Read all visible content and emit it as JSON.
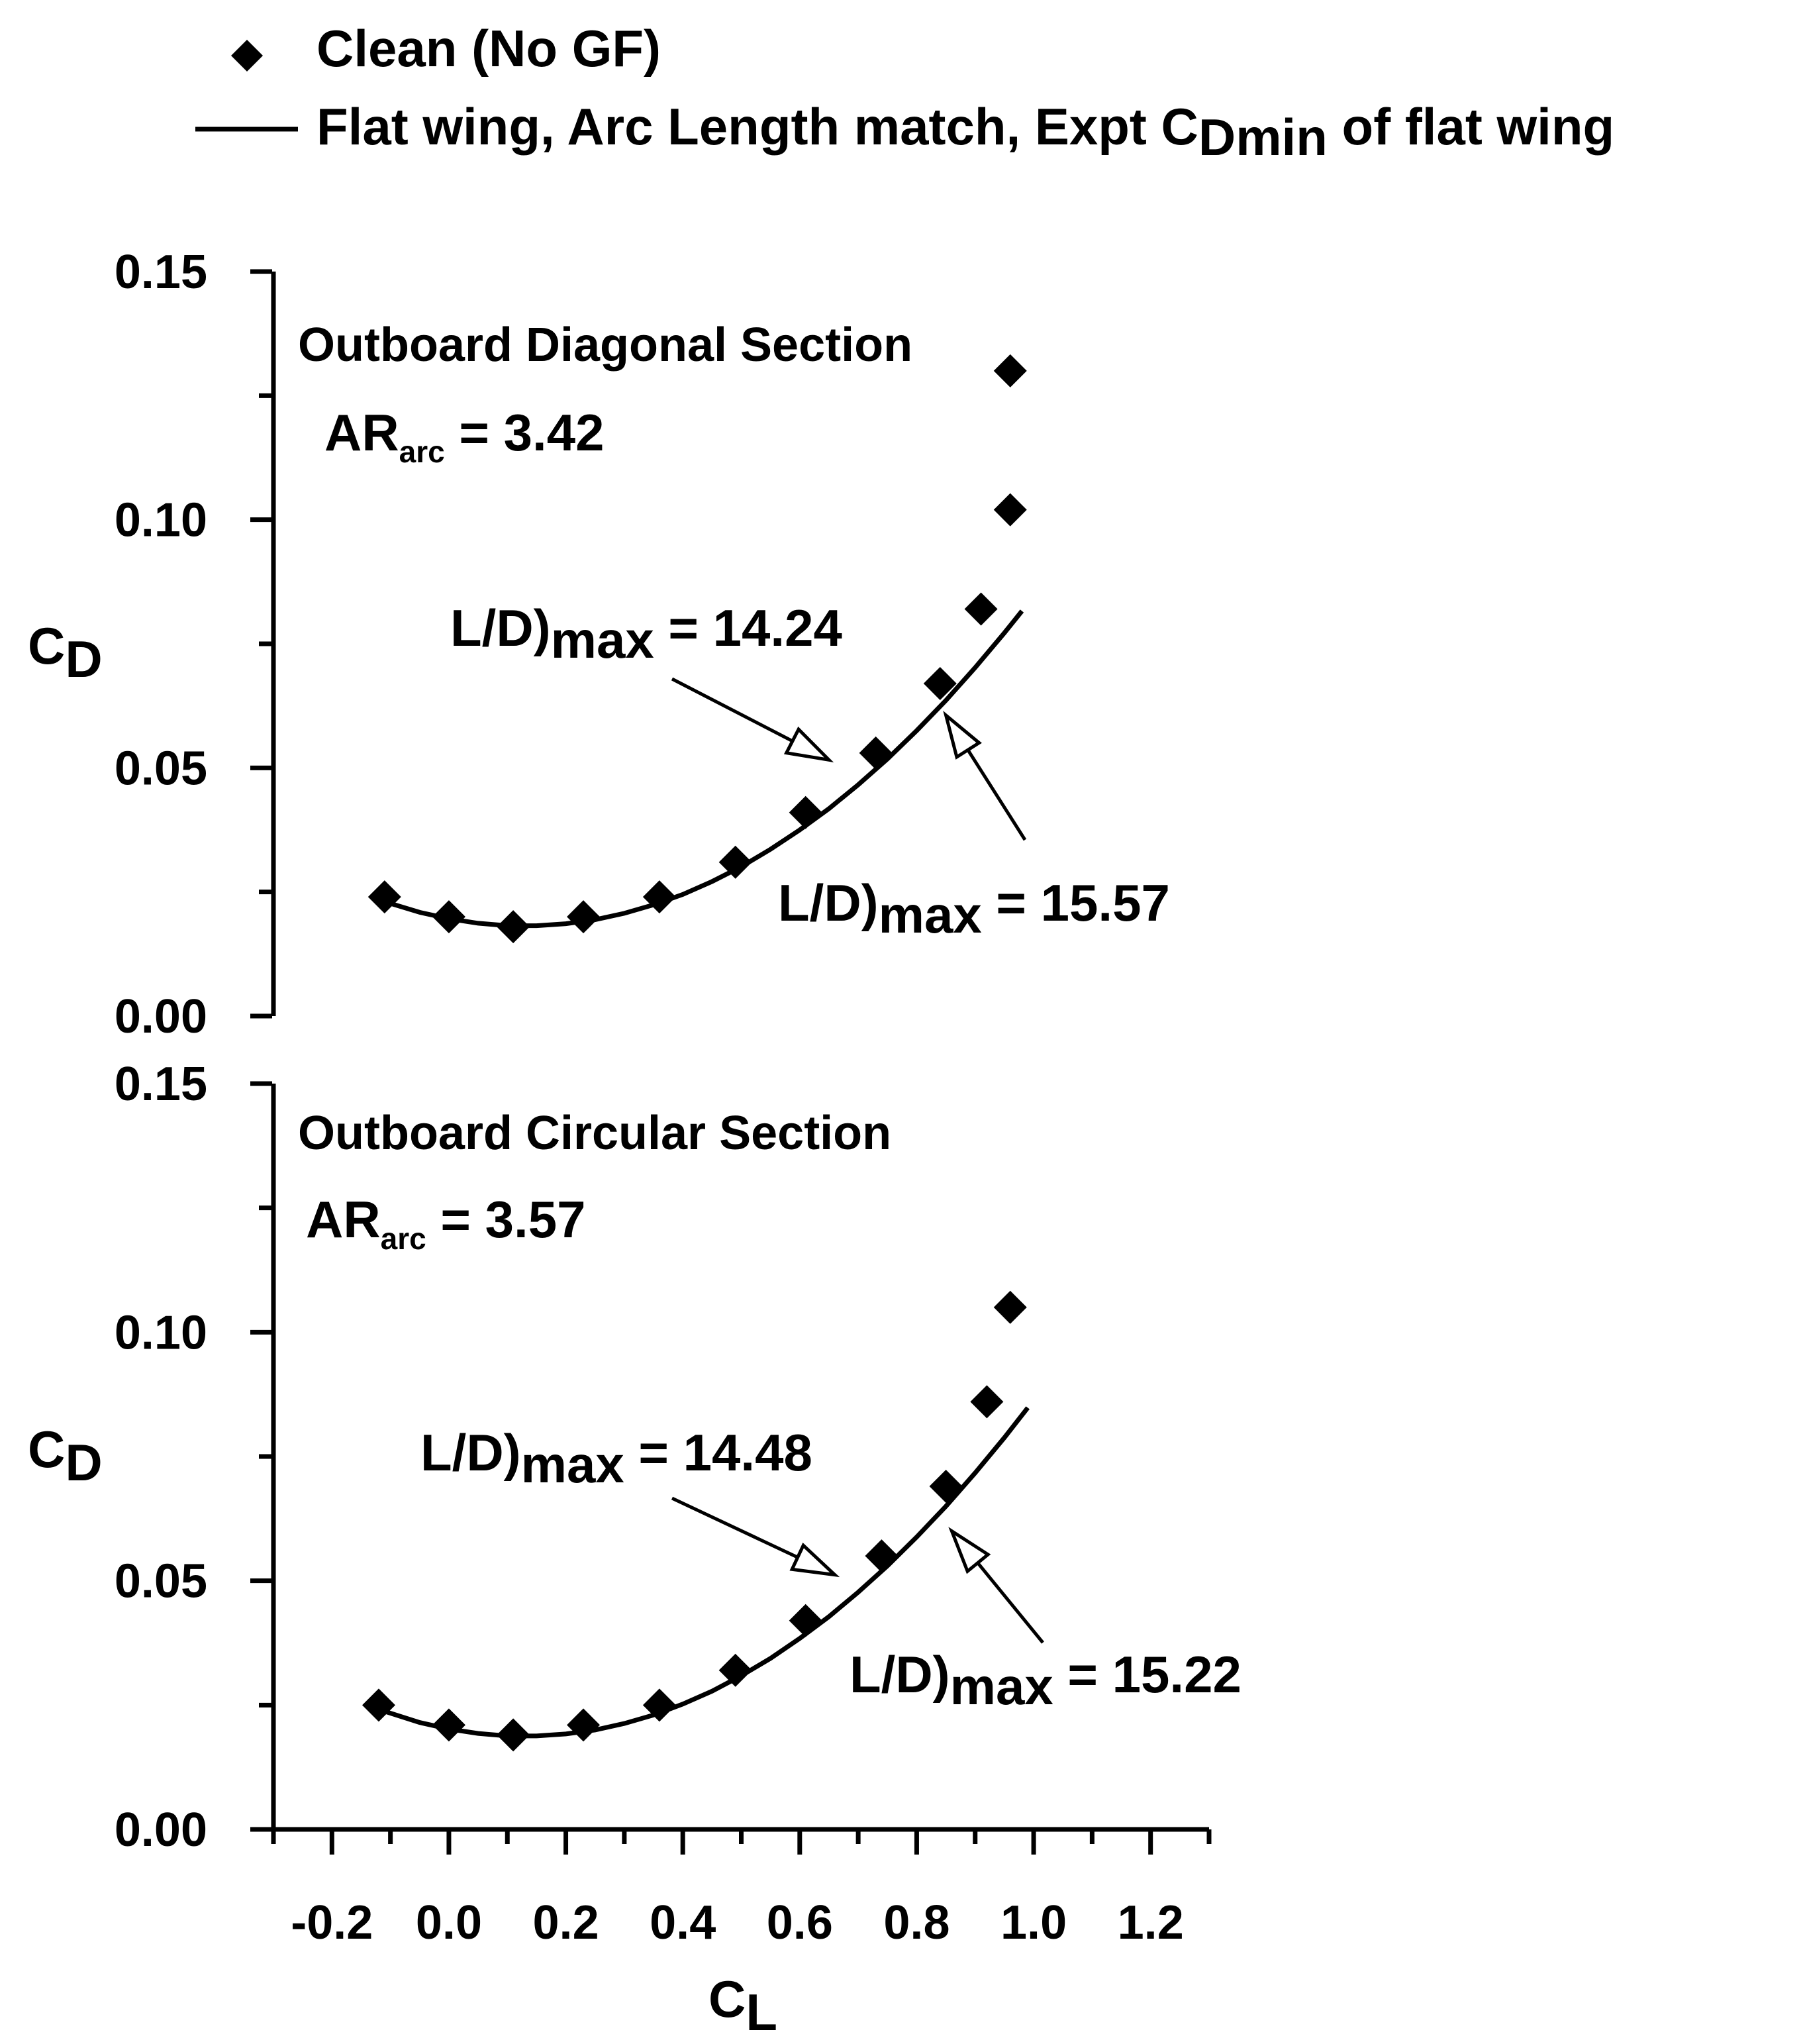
{
  "legend": {
    "items": [
      {
        "symbol": "diamond",
        "label": "Clean (No GF)"
      },
      {
        "symbol": "line",
        "label_main": "Flat wing, Arc Length match, Expt C",
        "label_sub": "Dmin",
        "label_tail": " of flat wing"
      }
    ]
  },
  "chart_data": [
    {
      "type": "scatter",
      "title": "Outboard Diagonal Section",
      "ar_label": {
        "main": "AR",
        "sub": "arc",
        "tail": " = 3.42"
      },
      "xlabel": {
        "main": "C",
        "sub": "L"
      },
      "ylabel": {
        "main": "C",
        "sub": "D"
      },
      "xlim": [
        -0.3,
        1.3
      ],
      "ylim": [
        0.0,
        0.15
      ],
      "xticks": [
        "-0.2",
        "0.0",
        "0.2",
        "0.4",
        "0.6",
        "0.8",
        "1.0",
        "1.2"
      ],
      "yticks": [
        "0.00",
        "0.05",
        "0.10",
        "0.15"
      ],
      "series": [
        {
          "name": "Clean (No GF)",
          "style": "markers",
          "x": [
            -0.11,
            0.0,
            0.11,
            0.23,
            0.36,
            0.49,
            0.61,
            0.73,
            0.84,
            0.91,
            0.96,
            0.96
          ],
          "y": [
            0.024,
            0.02,
            0.018,
            0.02,
            0.024,
            0.031,
            0.041,
            0.053,
            0.067,
            0.082,
            0.102,
            0.13
          ]
        },
        {
          "name": "Flat wing, Arc Length match, Expt CDmin of flat wing",
          "style": "line",
          "x": [
            -0.12,
            -0.05,
            0.0,
            0.05,
            0.1,
            0.15,
            0.2,
            0.25,
            0.3,
            0.35,
            0.4,
            0.45,
            0.5,
            0.55,
            0.6,
            0.65,
            0.7,
            0.75,
            0.8,
            0.85,
            0.9,
            0.95,
            0.98
          ],
          "y": [
            0.0234,
            0.0209,
            0.0196,
            0.0187,
            0.0182,
            0.0182,
            0.0186,
            0.0194,
            0.0207,
            0.0224,
            0.0245,
            0.0271,
            0.0301,
            0.0336,
            0.0375,
            0.0418,
            0.0466,
            0.0518,
            0.0575,
            0.0636,
            0.0702,
            0.0772,
            0.0816
          ]
        }
      ],
      "annotations": [
        {
          "text_main": "L/D)",
          "text_sub": "max",
          "text_tail": " = 14.24",
          "target": [
            0.65,
            0.0516
          ]
        },
        {
          "text_main": "L/D)",
          "text_sub": "max",
          "text_tail": " = 15.57",
          "target": [
            0.85,
            0.0606
          ]
        }
      ]
    },
    {
      "type": "scatter",
      "title": "Outboard Circular Section",
      "ar_label": {
        "main": "AR",
        "sub": "arc",
        "tail": " = 3.57"
      },
      "xlabel": {
        "main": "C",
        "sub": "L"
      },
      "ylabel": {
        "main": "C",
        "sub": "D"
      },
      "xlim": [
        -0.3,
        1.3
      ],
      "ylim": [
        0.0,
        0.15
      ],
      "xticks": [
        "-0.2",
        "0.0",
        "0.2",
        "0.4",
        "0.6",
        "0.8",
        "1.0",
        "1.2"
      ],
      "yticks": [
        "0.00",
        "0.05",
        "0.10",
        "0.15"
      ],
      "series": [
        {
          "name": "Clean (No GF)",
          "style": "markers",
          "x": [
            -0.12,
            0.0,
            0.11,
            0.23,
            0.36,
            0.49,
            0.61,
            0.74,
            0.85,
            0.92,
            0.96
          ],
          "y": [
            0.025,
            0.021,
            0.019,
            0.021,
            0.025,
            0.032,
            0.042,
            0.055,
            0.069,
            0.086,
            0.105
          ]
        },
        {
          "name": "Flat wing, Arc Length match, Expt CDmin of flat wing",
          "style": "line",
          "x": [
            -0.13,
            -0.05,
            0.0,
            0.05,
            0.1,
            0.15,
            0.2,
            0.25,
            0.3,
            0.35,
            0.4,
            0.45,
            0.5,
            0.55,
            0.6,
            0.65,
            0.7,
            0.75,
            0.8,
            0.85,
            0.9,
            0.95,
            0.99
          ],
          "y": [
            0.0245,
            0.0215,
            0.0202,
            0.0193,
            0.0188,
            0.0188,
            0.0192,
            0.02,
            0.0213,
            0.023,
            0.0252,
            0.0278,
            0.0309,
            0.0344,
            0.0384,
            0.0428,
            0.0477,
            0.053,
            0.0588,
            0.065,
            0.0717,
            0.0788,
            0.0848
          ]
        }
      ],
      "annotations": [
        {
          "text_main": "L/D)",
          "text_sub": "max",
          "text_tail": " = 14.48",
          "target": [
            0.66,
            0.0512
          ]
        },
        {
          "text_main": "L/D)",
          "text_sub": "max",
          "text_tail": " = 15.22",
          "target": [
            0.86,
            0.06
          ]
        }
      ]
    }
  ]
}
